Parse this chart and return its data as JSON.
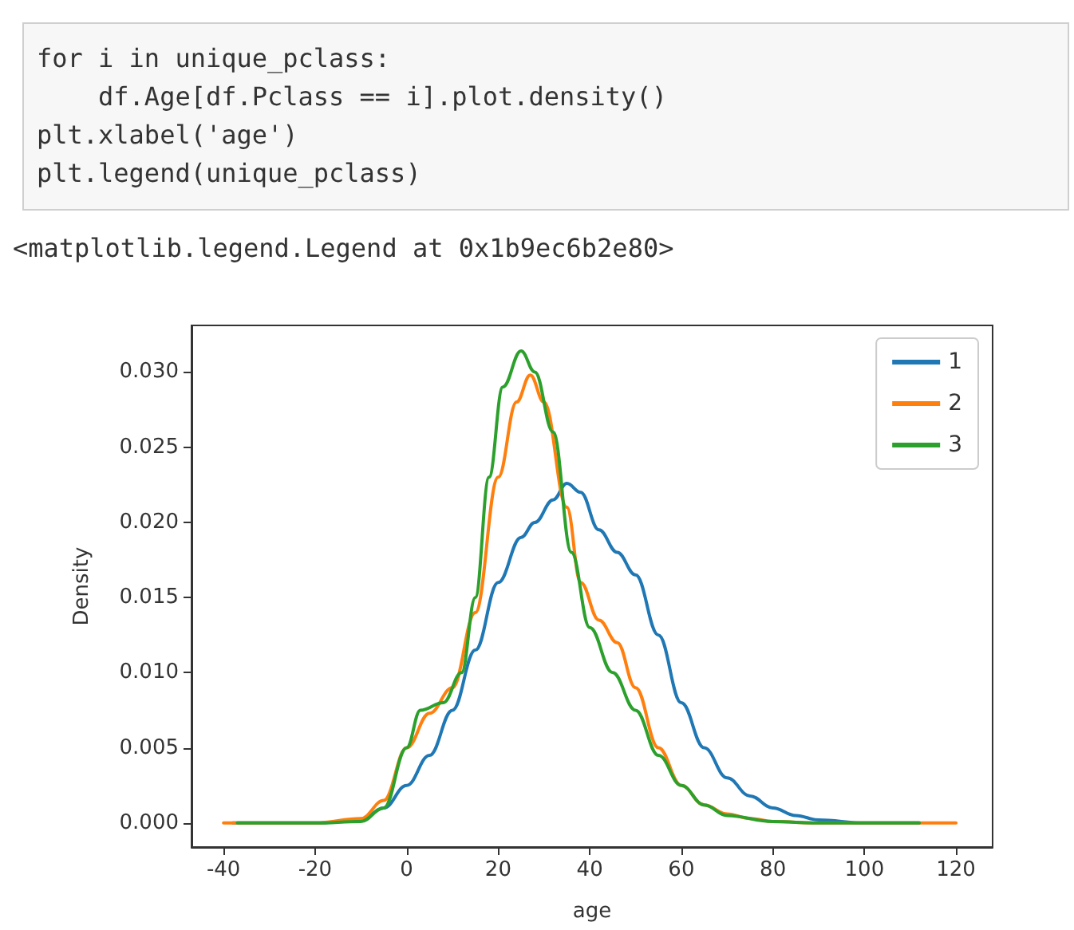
{
  "chart_data": {
    "type": "line",
    "xlabel": "age",
    "ylabel": "Density",
    "annotations": [
      "for i in unique_pclass:",
      "    df.Age[df.Pclass == i].plot.density()",
      "plt.xlabel('age')",
      "plt.legend(unique_pclass)",
      "<matplotlib.legend.Legend at 0x1b9ec6b2e80>"
    ],
    "series": [
      {
        "name": "1",
        "color": "#1f77b4",
        "x": [
          -38,
          -20,
          -10,
          -5,
          0,
          5,
          10,
          15,
          20,
          25,
          28,
          32,
          35,
          38,
          42,
          46,
          50,
          55,
          60,
          65,
          70,
          75,
          80,
          85,
          90,
          100,
          112
        ],
        "values": [
          0,
          0,
          0.0002,
          0.001,
          0.0025,
          0.0045,
          0.0075,
          0.0115,
          0.016,
          0.019,
          0.02,
          0.0215,
          0.0226,
          0.022,
          0.0195,
          0.018,
          0.0165,
          0.0125,
          0.008,
          0.005,
          0.003,
          0.0018,
          0.001,
          0.0005,
          0.0002,
          0,
          0
        ]
      },
      {
        "name": "2",
        "color": "#ff7f0e",
        "x": [
          -40,
          -20,
          -10,
          -5,
          0,
          5,
          10,
          15,
          20,
          24,
          27,
          30,
          35,
          38,
          42,
          46,
          50,
          55,
          60,
          65,
          70,
          75,
          80,
          90,
          120
        ],
        "values": [
          0,
          0,
          0.0003,
          0.0015,
          0.005,
          0.0073,
          0.009,
          0.014,
          0.023,
          0.028,
          0.0298,
          0.028,
          0.021,
          0.016,
          0.0135,
          0.012,
          0.009,
          0.005,
          0.0025,
          0.0012,
          0.0006,
          0.0003,
          0.0001,
          0,
          0
        ]
      },
      {
        "name": "3",
        "color": "#2ca02c",
        "x": [
          -37,
          -20,
          -10,
          -5,
          0,
          3,
          8,
          12,
          15,
          18,
          21,
          25,
          28,
          32,
          36,
          40,
          45,
          50,
          55,
          60,
          65,
          70,
          80,
          90,
          112
        ],
        "values": [
          0,
          0,
          0.0001,
          0.001,
          0.005,
          0.0075,
          0.008,
          0.01,
          0.015,
          0.023,
          0.029,
          0.0314,
          0.03,
          0.026,
          0.018,
          0.013,
          0.01,
          0.0075,
          0.0045,
          0.0025,
          0.0012,
          0.0005,
          0.0001,
          0,
          0
        ]
      }
    ],
    "xlim": [
      -47,
      128
    ],
    "xticks": [
      -40,
      -20,
      0,
      20,
      40,
      60,
      80,
      100,
      120
    ],
    "ylim": [
      -0.0016,
      0.0331
    ],
    "yticks": [
      {
        "value": 0,
        "label": "0.000"
      },
      {
        "value": 0.005,
        "label": "0.005"
      },
      {
        "value": 0.01,
        "label": "0.010"
      },
      {
        "value": 0.015,
        "label": "0.015"
      },
      {
        "value": 0.02,
        "label": "0.020"
      },
      {
        "value": 0.025,
        "label": "0.025"
      },
      {
        "value": 0.03,
        "label": "0.030"
      }
    ],
    "grid": false,
    "legend": "top right",
    "marker": "none",
    "line_style": "solid"
  }
}
